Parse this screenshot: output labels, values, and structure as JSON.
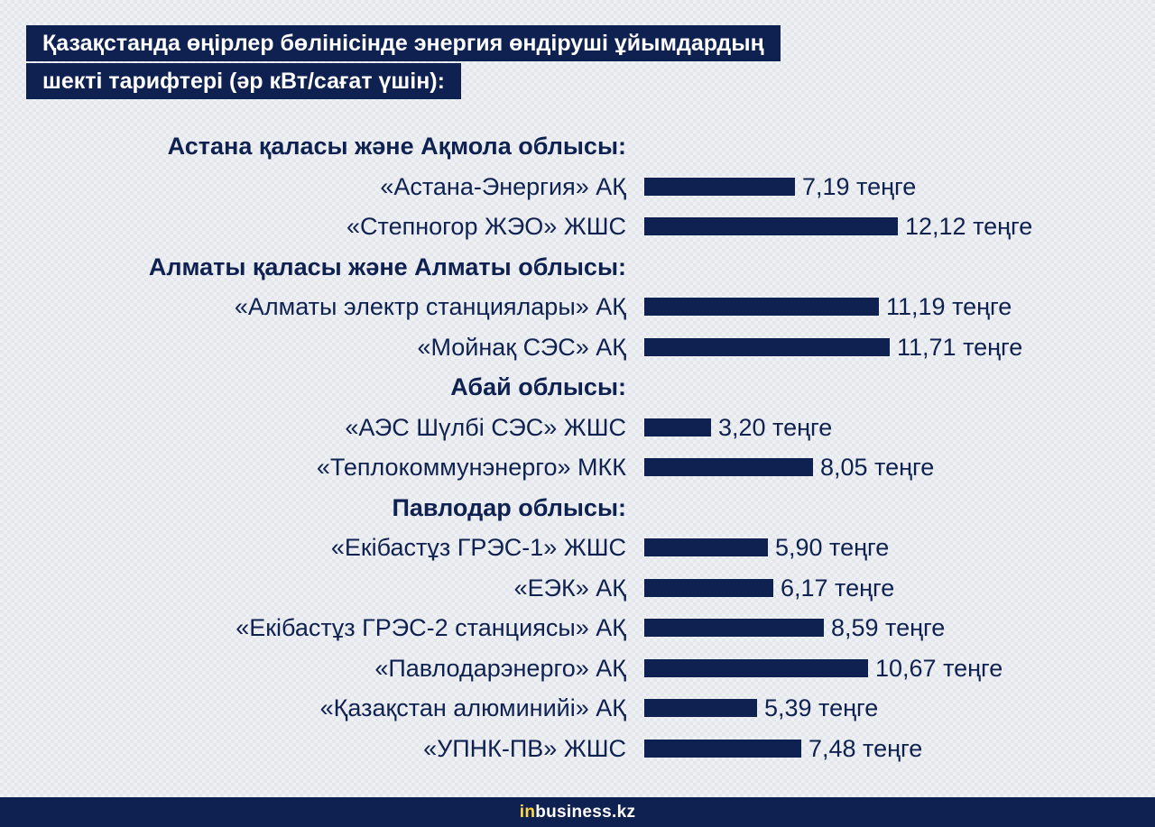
{
  "title_lines": [
    "Қазақстанда өңірлер бөлінісінде энергия өндіруші ұйымдардың",
    "шекті тарифтері (әр кВт/сағат үшін):"
  ],
  "footer": {
    "brand_prefix": "in",
    "brand_rest": "business.kz"
  },
  "colors": {
    "bar": "#0f2150",
    "text": "#0f2150",
    "background": "#eef0f3"
  },
  "chart_data": {
    "type": "bar",
    "orientation": "horizontal",
    "unit": "теңге",
    "groups": [
      {
        "name": "Астана қаласы және Ақмола облысы:",
        "items": [
          {
            "category": "«Астана-Энергия» АҚ",
            "value": 7.19,
            "label": "7,19 теңге"
          },
          {
            "category": "«Степногор ЖЭО» ЖШС",
            "value": 12.12,
            "label": "12,12 теңге"
          }
        ]
      },
      {
        "name": "Алматы қаласы және Алматы облысы:",
        "items": [
          {
            "category": "«Алматы электр станциялары» АҚ",
            "value": 11.19,
            "label": "11,19 теңге"
          },
          {
            "category": "«Мойнақ СЭС» АҚ",
            "value": 11.71,
            "label": "11,71 теңге"
          }
        ]
      },
      {
        "name": "Абай облысы:",
        "items": [
          {
            "category": "«АЭС Шүлбі СЭС» ЖШС",
            "value": 3.2,
            "label": "3,20 теңге"
          },
          {
            "category": "«Теплокоммунэнерго» МКК",
            "value": 8.05,
            "label": "8,05 теңге"
          }
        ]
      },
      {
        "name": "Павлодар облысы:",
        "items": [
          {
            "category": "«Екібастұз ГРЭС-1» ЖШС",
            "value": 5.9,
            "label": "5,90 теңге"
          },
          {
            "category": "«ЕЭК» АҚ",
            "value": 6.17,
            "label": "6,17 теңге"
          },
          {
            "category": "«Екібастұз ГРЭС-2 станциясы» АҚ",
            "value": 8.59,
            "label": "8,59 теңге"
          },
          {
            "category": "«Павлодарэнерго» АҚ",
            "value": 10.67,
            "label": "10,67 теңге"
          },
          {
            "category": "«Қазақстан алюминийі» АҚ",
            "value": 5.39,
            "label": "5,39 теңге"
          },
          {
            "category": "«УПНК-ПВ» ЖШС",
            "value": 7.48,
            "label": "7,48 теңге"
          }
        ]
      }
    ]
  }
}
